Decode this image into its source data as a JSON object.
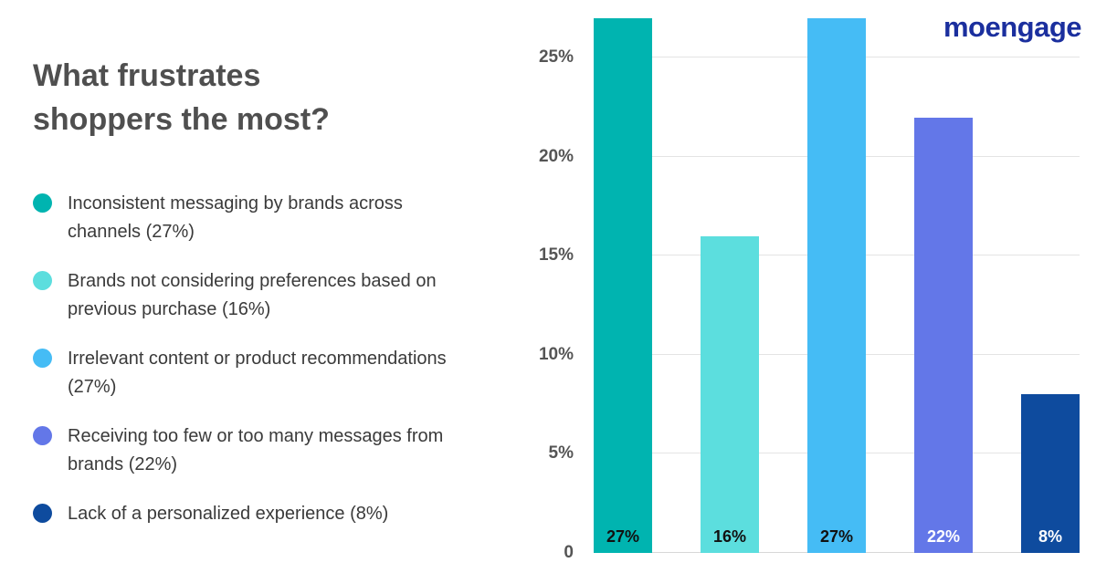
{
  "logo": {
    "text": "moengage",
    "color": "#1b2f9e"
  },
  "header": {
    "title": "What frustrates\nshoppers the most?"
  },
  "legend": {
    "items": [
      {
        "label": "Inconsistent messaging by brands across channels (27%)",
        "color": "#00b4b0"
      },
      {
        "label": "Brands not considering preferences based on previous purchase (16%)",
        "color": "#5cdede"
      },
      {
        "label": "Irrelevant content or product recommendations (27%)",
        "color": "#45bcf5"
      },
      {
        "label": "Receiving too few or too many messages from brands (22%)",
        "color": "#6377e8"
      },
      {
        "label": "Lack of a personalized experience (8%)",
        "color": "#0e4b9e"
      }
    ]
  },
  "chart_data": {
    "type": "bar",
    "title": "What frustrates shoppers the most?",
    "categories": [
      "Inconsistent messaging by brands across channels",
      "Brands not considering preferences based on previous purchase",
      "Irrelevant content or product recommendations",
      "Receiving too few or too many messages from brands",
      "Lack of a personalized experience"
    ],
    "values": [
      27,
      16,
      27,
      22,
      8
    ],
    "bar_labels": [
      "27%",
      "16%",
      "27%",
      "22%",
      "8%"
    ],
    "bar_colors": [
      "#00b4b0",
      "#5cdede",
      "#45bcf5",
      "#6377e8",
      "#0e4b9e"
    ],
    "bar_label_colors": [
      "#111111",
      "#111111",
      "#111111",
      "#ffffff",
      "#ffffff"
    ],
    "xlabel": "",
    "ylabel": "",
    "yticks": [
      25,
      20,
      15,
      10,
      5,
      0
    ],
    "ytick_labels": [
      "25%",
      "20%",
      "15%",
      "10%",
      "5%",
      "0"
    ],
    "ylim": [
      0,
      27
    ],
    "grid": true,
    "legend_position": "left"
  }
}
